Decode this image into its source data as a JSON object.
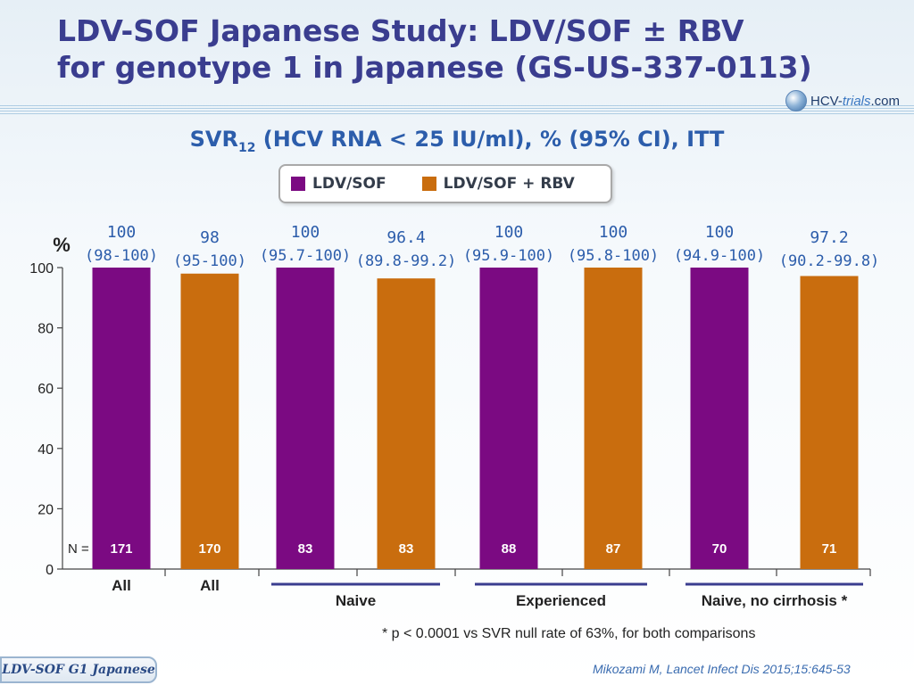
{
  "title": {
    "line1": "LDV-SOF Japanese Study: LDV/SOF ± RBV",
    "line2": "for genotype 1 in Japanese (GS-US-337-0113)"
  },
  "logo": {
    "icon": "globe-icon",
    "text_main": "HCV-",
    "text_accent": "trials",
    "text_suffix": ".com"
  },
  "subtitle": {
    "prefix": "SVR",
    "sub": "12",
    "rest": " (HCV RNA < 25 IU/ml), % (95% CI), ITT"
  },
  "colors": {
    "ldvsof": "#7b0a82",
    "ldvsof_rbv": "#c96d0e",
    "title": "#3a3d8f",
    "accent": "#2c5dab"
  },
  "chart_data": {
    "type": "bar",
    "title": "SVR12 (HCV RNA < 25 IU/ml), % (95% CI), ITT",
    "ylabel": "%",
    "ylim": [
      0,
      100
    ],
    "yticks": [
      0,
      20,
      40,
      60,
      80,
      100
    ],
    "n_label": "N =",
    "legend": [
      {
        "name": "LDV/SOF",
        "color": "#7b0a82"
      },
      {
        "name": "LDV/SOF + RBV",
        "color": "#c96d0e"
      }
    ],
    "bars": [
      {
        "series": "LDV/SOF",
        "value": 100,
        "value_label": "100",
        "ci": "(98-100)",
        "n": "171",
        "category": "All"
      },
      {
        "series": "LDV/SOF + RBV",
        "value": 98,
        "value_label": "98",
        "ci": "(95-100)",
        "n": "170",
        "category": "All"
      },
      {
        "series": "LDV/SOF",
        "value": 100,
        "value_label": "100",
        "ci": "(95.7-100)",
        "n": "83"
      },
      {
        "series": "LDV/SOF + RBV",
        "value": 96.4,
        "value_label": "96.4",
        "ci": "(89.8-99.2)",
        "n": "83"
      },
      {
        "series": "LDV/SOF",
        "value": 100,
        "value_label": "100",
        "ci": "(95.9-100)",
        "n": "88"
      },
      {
        "series": "LDV/SOF + RBV",
        "value": 100,
        "value_label": "100",
        "ci": "(95.8-100)",
        "n": "87"
      },
      {
        "series": "LDV/SOF",
        "value": 100,
        "value_label": "100",
        "ci": "(94.9-100)",
        "n": "70"
      },
      {
        "series": "LDV/SOF + RBV",
        "value": 97.2,
        "value_label": "97.2",
        "ci": "(90.2-99.8)",
        "n": "71"
      }
    ],
    "groups": [
      {
        "label": "Naive",
        "bars": [
          2,
          3
        ]
      },
      {
        "label": "Experienced",
        "bars": [
          4,
          5
        ]
      },
      {
        "label": "Naive, no cirrhosis *",
        "bars": [
          6,
          7
        ]
      }
    ]
  },
  "footnote": "* p < 0.0001 vs SVR null rate of 63%, for both comparisons",
  "slide_label": "LDV-SOF G1 Japanese",
  "citation": "Mikozami M, Lancet Infect Dis 2015;15:645-53"
}
